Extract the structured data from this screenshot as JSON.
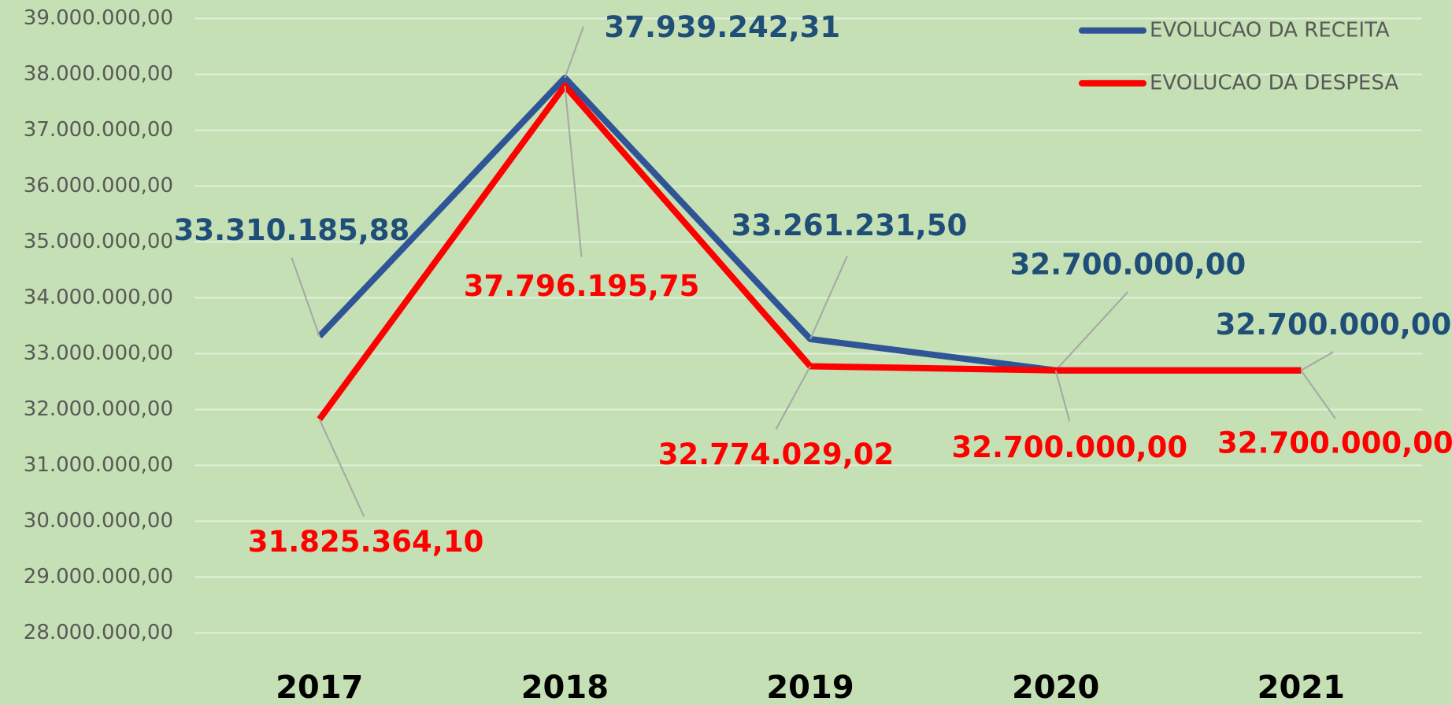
{
  "chart_data": {
    "type": "line",
    "categories": [
      "2017",
      "2018",
      "2019",
      "2020",
      "2021"
    ],
    "series": [
      {
        "name": "EVOLUCAO DA RECEITA",
        "color": "#2f5597",
        "label_color": "#1f4e79",
        "values": [
          33310185.88,
          37939242.31,
          33261231.5,
          32700000,
          32700000
        ],
        "value_labels": [
          "33.310.185,88",
          "37.939.242,31",
          "33.261.231,50",
          "32.700.000,00",
          "32.700.000,00"
        ]
      },
      {
        "name": "EVOLUCAO DA DESPESA",
        "color": "#ff0000",
        "label_color": "#ff0000",
        "values": [
          31825364.1,
          37796195.75,
          32774029.02,
          32700000,
          32700000
        ],
        "value_labels": [
          "31.825.364,10",
          "37.796.195,75",
          "32.774.029,02",
          "32.700.000,00",
          "32.700.000,00"
        ]
      }
    ],
    "ylim": [
      28000000,
      39000000
    ],
    "yticks": [
      {
        "value": 28000000,
        "label": "28.000.000,00"
      },
      {
        "value": 29000000,
        "label": "29.000.000,00"
      },
      {
        "value": 30000000,
        "label": "30.000.000,00"
      },
      {
        "value": 31000000,
        "label": "31.000.000,00"
      },
      {
        "value": 32000000,
        "label": "32.000.000,00"
      },
      {
        "value": 33000000,
        "label": "33.000.000,00"
      },
      {
        "value": 34000000,
        "label": "34.000.000,00"
      },
      {
        "value": 35000000,
        "label": "35.000.000,00"
      },
      {
        "value": 36000000,
        "label": "36.000.000,00"
      },
      {
        "value": 37000000,
        "label": "37.000.000,00"
      },
      {
        "value": 38000000,
        "label": "38.000.000,00"
      },
      {
        "value": 39000000,
        "label": "39.000.000,00"
      }
    ],
    "grid": true,
    "legend": "top-right",
    "background": "#c5e0b4"
  }
}
